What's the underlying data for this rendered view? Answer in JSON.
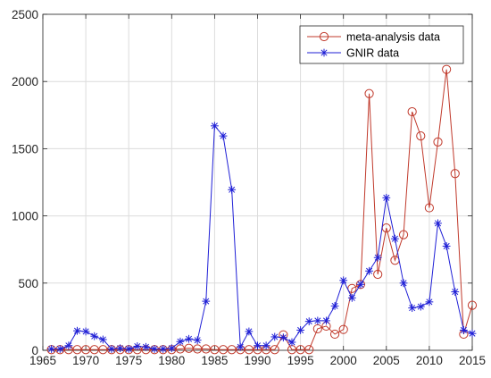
{
  "chart_data": {
    "type": "line",
    "grid": true,
    "xlim": [
      1965,
      2015
    ],
    "ylim": [
      0,
      2500
    ],
    "x_ticks": [
      1965,
      1970,
      1975,
      1980,
      1985,
      1990,
      1995,
      2000,
      2005,
      2010,
      2015
    ],
    "y_ticks": [
      0,
      500,
      1000,
      1500,
      2000,
      2500
    ],
    "legend_position": "top-right",
    "series": [
      {
        "name": "meta-analysis data",
        "color": "#c0392b",
        "marker": "circle",
        "x": [
          1966,
          1967,
          1968,
          1969,
          1970,
          1971,
          1972,
          1973,
          1974,
          1975,
          1976,
          1977,
          1978,
          1979,
          1980,
          1981,
          1982,
          1983,
          1984,
          1985,
          1986,
          1987,
          1988,
          1989,
          1990,
          1991,
          1992,
          1993,
          1994,
          1995,
          1996,
          1997,
          1998,
          1999,
          2000,
          2001,
          2002,
          2003,
          2004,
          2005,
          2006,
          2007,
          2008,
          2009,
          2010,
          2011,
          2012,
          2013,
          2014,
          2015
        ],
        "values": [
          5,
          5,
          5,
          5,
          5,
          5,
          5,
          5,
          5,
          5,
          5,
          5,
          5,
          5,
          5,
          10,
          15,
          10,
          10,
          5,
          5,
          5,
          5,
          5,
          5,
          5,
          5,
          115,
          5,
          5,
          5,
          160,
          180,
          120,
          155,
          460,
          490,
          1910,
          565,
          910,
          670,
          860,
          1775,
          1595,
          1060,
          1550,
          2090,
          1315,
          120,
          335
        ]
      },
      {
        "name": "GNIR data",
        "color": "#1f1fd6",
        "marker": "asterisk",
        "x": [
          1966,
          1967,
          1968,
          1969,
          1970,
          1971,
          1972,
          1973,
          1974,
          1975,
          1976,
          1977,
          1978,
          1979,
          1980,
          1981,
          1982,
          1983,
          1984,
          1985,
          1986,
          1987,
          1988,
          1989,
          1990,
          1991,
          1992,
          1993,
          1994,
          1995,
          1996,
          1997,
          1998,
          1999,
          2000,
          2001,
          2002,
          2003,
          2004,
          2005,
          2006,
          2007,
          2008,
          2009,
          2010,
          2011,
          2012,
          2013,
          2014,
          2015
        ],
        "values": [
          10,
          10,
          35,
          145,
          140,
          105,
          80,
          10,
          15,
          10,
          30,
          25,
          10,
          10,
          15,
          65,
          85,
          75,
          365,
          1670,
          1595,
          1195,
          25,
          140,
          35,
          35,
          100,
          95,
          60,
          150,
          215,
          220,
          220,
          330,
          520,
          390,
          490,
          590,
          690,
          1135,
          830,
          500,
          315,
          325,
          360,
          945,
          775,
          435,
          150,
          125
        ]
      }
    ]
  }
}
